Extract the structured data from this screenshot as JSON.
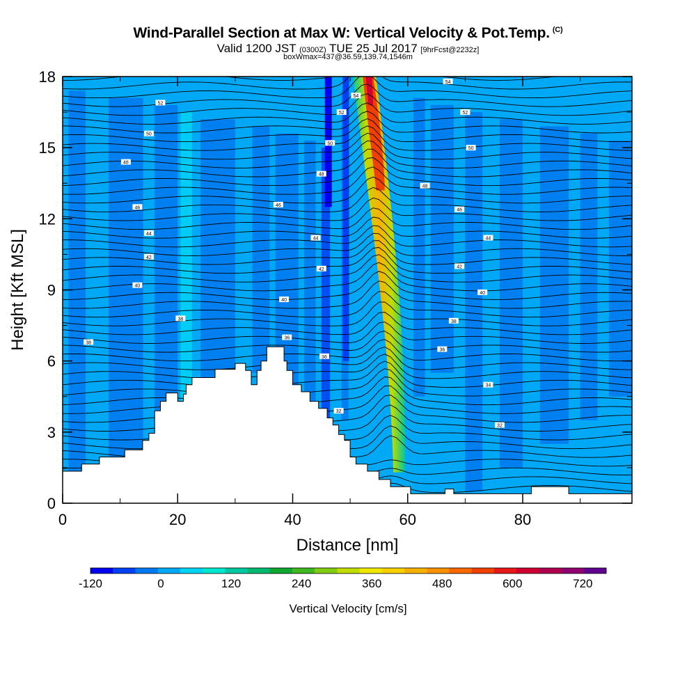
{
  "title": "Wind-Parallel Section at Max W: Vertical Velocity & Pot.Temp.",
  "title_unit": "(C)",
  "subtitle_main": "Valid 1200 JST",
  "subtitle_z": "(0300Z)",
  "subtitle_date": "TUE 25 Jul 2017",
  "subtitle_fcst": "[9hrFcst@2232z]",
  "subtitle2": "boxWmax=437@36.59,139.74,1546m",
  "chart_data": {
    "type": "heatmap",
    "xlabel": "Distance [nm]",
    "ylabel": "Height [Kft MSL]",
    "xlim": [
      0,
      99
    ],
    "ylim": [
      0,
      18
    ],
    "xticks": [
      "0",
      "20",
      "40",
      "60",
      "80"
    ],
    "yticks": [
      "0",
      "3",
      "6",
      "9",
      "12",
      "15",
      "18"
    ],
    "colorbar": {
      "title": "Vertical Velocity [cm/s]",
      "labels": [
        "-120",
        "0",
        "120",
        "240",
        "360",
        "480",
        "600",
        "720"
      ],
      "colors": [
        "#0000f0",
        "#0040f5",
        "#0078f0",
        "#00a8f5",
        "#00d4f5",
        "#00e8d0",
        "#00c8a0",
        "#00b870",
        "#10a830",
        "#40b820",
        "#80cc10",
        "#c0dc00",
        "#f0e800",
        "#f8d000",
        "#f8b000",
        "#f89000",
        "#f86800",
        "#f04000",
        "#e81818",
        "#d00030",
        "#b00050",
        "#900070",
        "#600090"
      ],
      "min": -120,
      "max": 760
    },
    "terrain": [
      [
        0,
        1.35
      ],
      [
        3.3,
        1.35
      ],
      [
        3.3,
        1.65
      ],
      [
        6.4,
        1.65
      ],
      [
        6.4,
        1.95
      ],
      [
        10.8,
        1.95
      ],
      [
        10.8,
        2.25
      ],
      [
        13.9,
        2.25
      ],
      [
        13.9,
        2.65
      ],
      [
        15,
        2.65
      ],
      [
        15,
        2.95
      ],
      [
        16,
        2.95
      ],
      [
        16,
        3.9
      ],
      [
        17,
        3.9
      ],
      [
        17,
        4.3
      ],
      [
        18,
        4.3
      ],
      [
        18,
        4.65
      ],
      [
        20,
        4.65
      ],
      [
        20,
        4.3
      ],
      [
        21,
        4.3
      ],
      [
        21,
        4.6
      ],
      [
        21.5,
        4.6
      ],
      [
        21.5,
        5.0
      ],
      [
        22.5,
        5.0
      ],
      [
        22.5,
        5.3
      ],
      [
        26.5,
        5.3
      ],
      [
        26.5,
        5.65
      ],
      [
        30,
        5.65
      ],
      [
        30,
        5.9
      ],
      [
        31.8,
        5.9
      ],
      [
        31.8,
        5.6
      ],
      [
        32.8,
        5.6
      ],
      [
        32.8,
        5.0
      ],
      [
        33.8,
        5.0
      ],
      [
        33.8,
        5.6
      ],
      [
        34.5,
        5.6
      ],
      [
        34.5,
        6.0
      ],
      [
        35.5,
        6.0
      ],
      [
        35.5,
        6.6
      ],
      [
        38.5,
        6.6
      ],
      [
        38.5,
        6.0
      ],
      [
        39,
        6.0
      ],
      [
        39,
        5.6
      ],
      [
        40,
        5.6
      ],
      [
        40,
        5.0
      ],
      [
        41.5,
        5.0
      ],
      [
        41.5,
        4.7
      ],
      [
        43,
        4.7
      ],
      [
        43,
        4.3
      ],
      [
        44.5,
        4.3
      ],
      [
        44.5,
        4.0
      ],
      [
        46,
        4.0
      ],
      [
        46,
        3.6
      ],
      [
        47,
        3.6
      ],
      [
        47,
        3.3
      ],
      [
        48,
        3.3
      ],
      [
        48,
        2.9
      ],
      [
        49,
        2.9
      ],
      [
        49,
        2.65
      ],
      [
        50,
        2.65
      ],
      [
        50,
        1.95
      ],
      [
        51,
        1.95
      ],
      [
        51,
        1.65
      ],
      [
        53,
        1.65
      ],
      [
        53,
        1.35
      ],
      [
        55,
        1.35
      ],
      [
        55,
        1.0
      ],
      [
        57,
        1.0
      ],
      [
        57,
        0.7
      ],
      [
        60.5,
        0.7
      ],
      [
        60.5,
        0.4
      ],
      [
        66.5,
        0.4
      ],
      [
        66.5,
        0.6
      ],
      [
        68,
        0.6
      ],
      [
        68,
        0.4
      ],
      [
        81.5,
        0.4
      ],
      [
        81.5,
        0.7
      ],
      [
        88,
        0.7
      ],
      [
        88,
        0.4
      ],
      [
        99,
        0.4
      ],
      [
        99,
        0
      ],
      [
        0,
        0
      ]
    ],
    "isentrope_labels": [
      {
        "x": 51,
        "y": 17.2,
        "text": "54"
      },
      {
        "x": 67,
        "y": 17.8,
        "text": "54"
      },
      {
        "x": 17,
        "y": 16.9,
        "text": "52"
      },
      {
        "x": 48.5,
        "y": 16.5,
        "text": "52"
      },
      {
        "x": 70,
        "y": 16.5,
        "text": "52"
      },
      {
        "x": 15,
        "y": 15.6,
        "text": "50"
      },
      {
        "x": 46.5,
        "y": 15.2,
        "text": "50"
      },
      {
        "x": 71,
        "y": 15.0,
        "text": "50"
      },
      {
        "x": 11,
        "y": 14.4,
        "text": "48"
      },
      {
        "x": 45,
        "y": 13.9,
        "text": "48"
      },
      {
        "x": 63,
        "y": 13.4,
        "text": "48"
      },
      {
        "x": 13,
        "y": 12.5,
        "text": "46"
      },
      {
        "x": 37.5,
        "y": 12.6,
        "text": "46"
      },
      {
        "x": 69,
        "y": 12.4,
        "text": "46"
      },
      {
        "x": 15,
        "y": 11.4,
        "text": "44"
      },
      {
        "x": 44,
        "y": 11.2,
        "text": "44"
      },
      {
        "x": 74,
        "y": 11.2,
        "text": "44"
      },
      {
        "x": 15,
        "y": 10.4,
        "text": "42"
      },
      {
        "x": 45,
        "y": 9.9,
        "text": "42"
      },
      {
        "x": 69,
        "y": 10.0,
        "text": "42"
      },
      {
        "x": 13,
        "y": 9.2,
        "text": "40"
      },
      {
        "x": 38.5,
        "y": 8.6,
        "text": "40"
      },
      {
        "x": 73,
        "y": 8.9,
        "text": "40"
      },
      {
        "x": 20.5,
        "y": 7.8,
        "text": "38"
      },
      {
        "x": 68,
        "y": 7.7,
        "text": "38"
      },
      {
        "x": 4.5,
        "y": 6.8,
        "text": "38"
      },
      {
        "x": 39,
        "y": 7.0,
        "text": "36"
      },
      {
        "x": 66,
        "y": 6.5,
        "text": "36"
      },
      {
        "x": 45.5,
        "y": 6.2,
        "text": "36"
      },
      {
        "x": 74,
        "y": 5.0,
        "text": "34"
      },
      {
        "x": 48,
        "y": 3.9,
        "text": "32"
      },
      {
        "x": 76,
        "y": 3.3,
        "text": "32"
      }
    ]
  }
}
